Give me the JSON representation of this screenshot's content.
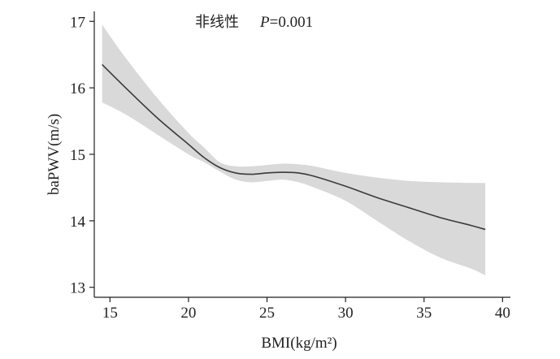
{
  "chart_data": {
    "type": "line",
    "xlabel": "BMI(kg/m²)",
    "ylabel": "baPWV(m/s)",
    "annotation": {
      "prefix": "非线性",
      "p_symbol": "P",
      "p_value": "=0.001"
    },
    "xlim": [
      14,
      40.5
    ],
    "ylim": [
      12.85,
      17.15
    ],
    "x_ticks": [
      15,
      20,
      25,
      30,
      35,
      40
    ],
    "y_ticks": [
      13,
      14,
      15,
      16,
      17
    ],
    "band_color": "#d9d9d9",
    "line_color": "#3a3a3a",
    "series": [
      {
        "x": [
          14.5,
          16,
          18,
          20,
          21,
          22,
          23,
          24,
          25,
          26,
          27,
          28,
          30,
          32,
          34,
          36,
          38,
          38.9
        ],
        "y": [
          16.35,
          16.0,
          15.55,
          15.15,
          14.95,
          14.8,
          14.72,
          14.7,
          14.72,
          14.73,
          14.72,
          14.67,
          14.52,
          14.35,
          14.2,
          14.05,
          13.93,
          13.87
        ],
        "lower": [
          15.78,
          15.6,
          15.3,
          15.0,
          14.88,
          14.74,
          14.62,
          14.58,
          14.6,
          14.62,
          14.58,
          14.5,
          14.3,
          14.0,
          13.7,
          13.45,
          13.28,
          13.18
        ],
        "upper": [
          16.95,
          16.45,
          15.85,
          15.32,
          15.1,
          14.88,
          14.82,
          14.82,
          14.84,
          14.86,
          14.85,
          14.82,
          14.72,
          14.65,
          14.6,
          14.58,
          14.57,
          14.57
        ]
      }
    ]
  }
}
